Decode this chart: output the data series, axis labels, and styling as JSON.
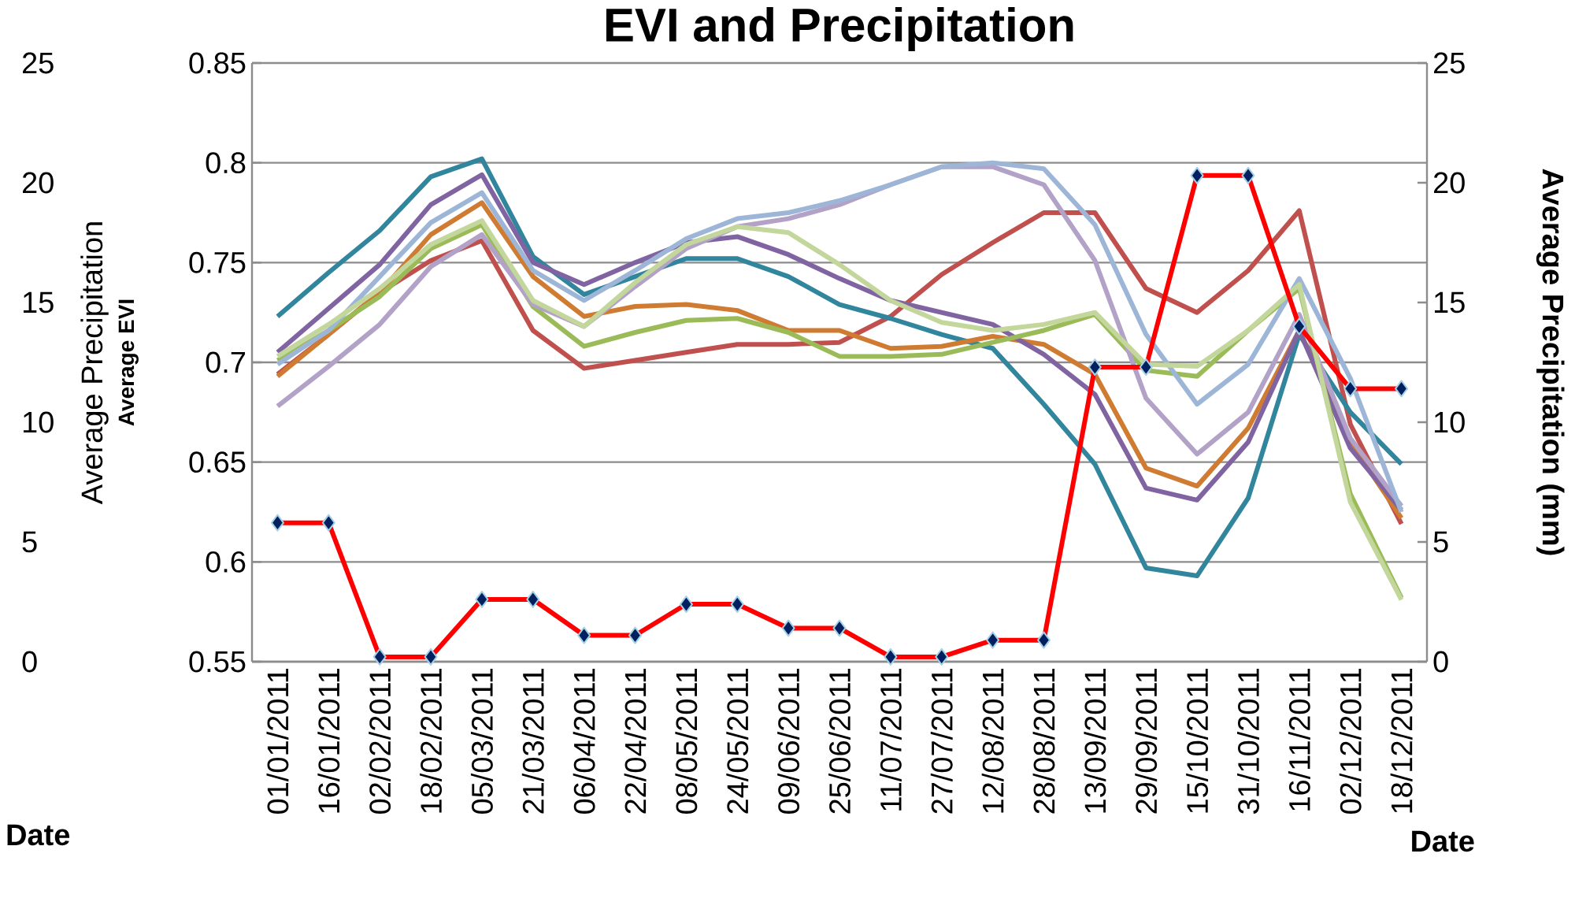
{
  "chart_data": {
    "type": "line",
    "title": "EVI and Precipitation",
    "xlabel": "Date",
    "ylabel": "Average EVI",
    "y2label": "Average Precipitation (mm)",
    "y3label": "Average Precipitation",
    "annotations": [
      "Date"
    ],
    "categories": [
      "01/01/2011",
      "16/01/2011",
      "02/02/2011",
      "18/02/2011",
      "05/03/2011",
      "21/03/2011",
      "06/04/2011",
      "22/04/2011",
      "08/05/2011",
      "24/05/2011",
      "09/06/2011",
      "25/06/2011",
      "11/07/2011",
      "27/07/2011",
      "12/08/2011",
      "28/08/2011",
      "13/09/2011",
      "29/09/2011",
      "15/10/2011",
      "31/10/2011",
      "16/11/2011",
      "02/12/2011",
      "18/12/2011"
    ],
    "ylim": [
      0.55,
      0.85
    ],
    "yticks": [
      0.55,
      0.6,
      0.65,
      0.7,
      0.75,
      0.8,
      0.85
    ],
    "y2lim": [
      0,
      25
    ],
    "y2ticks": [
      0,
      5,
      10,
      15,
      20,
      25
    ],
    "y3lim": [
      0,
      25
    ],
    "y3ticks": [
      0,
      5,
      10,
      15,
      20,
      25
    ],
    "grid": "y",
    "series": [
      {
        "color": "#c0504d",
        "values": [
          0.694,
          0.714,
          0.735,
          0.751,
          0.761,
          0.716,
          0.697,
          0.701,
          0.705,
          0.709,
          0.709,
          0.71,
          0.723,
          0.744,
          0.76,
          0.775,
          0.775,
          0.737,
          0.725,
          0.746,
          0.776,
          0.669,
          0.619
        ]
      },
      {
        "color": "#31859c",
        "values": [
          0.723,
          0.745,
          0.766,
          0.793,
          0.802,
          0.753,
          0.734,
          0.743,
          0.752,
          0.752,
          0.743,
          0.729,
          0.722,
          0.714,
          0.707,
          0.679,
          0.649,
          0.597,
          0.593,
          0.632,
          0.714,
          0.675,
          0.649
        ]
      },
      {
        "color": "#d07b32",
        "values": [
          0.693,
          0.714,
          0.735,
          0.764,
          0.78,
          0.743,
          0.723,
          0.728,
          0.729,
          0.726,
          0.716,
          0.716,
          0.707,
          0.708,
          0.713,
          0.709,
          0.694,
          0.647,
          0.638,
          0.667,
          0.716,
          0.66,
          0.622
        ]
      },
      {
        "color": "#8064a2",
        "values": [
          0.705,
          0.727,
          0.749,
          0.779,
          0.794,
          0.75,
          0.739,
          0.75,
          0.76,
          0.763,
          0.754,
          0.742,
          0.731,
          0.725,
          0.719,
          0.704,
          0.684,
          0.637,
          0.631,
          0.66,
          0.716,
          0.657,
          0.626
        ]
      },
      {
        "color": "#9bbb59",
        "values": [
          0.701,
          0.716,
          0.733,
          0.757,
          0.769,
          0.728,
          0.708,
          0.715,
          0.721,
          0.722,
          0.715,
          0.703,
          0.703,
          0.704,
          0.71,
          0.716,
          0.724,
          0.696,
          0.693,
          0.716,
          0.737,
          0.634,
          0.582
        ]
      },
      {
        "color": "#b3a2c7",
        "values": [
          0.678,
          0.698,
          0.719,
          0.748,
          0.764,
          0.729,
          0.718,
          0.738,
          0.757,
          0.768,
          0.772,
          0.779,
          0.789,
          0.798,
          0.798,
          0.789,
          0.751,
          0.682,
          0.654,
          0.675,
          0.724,
          0.662,
          0.628
        ]
      },
      {
        "color": "#9db6d8",
        "values": [
          0.699,
          0.716,
          0.743,
          0.77,
          0.785,
          0.746,
          0.731,
          0.746,
          0.762,
          0.772,
          0.775,
          0.781,
          0.789,
          0.798,
          0.8,
          0.797,
          0.769,
          0.714,
          0.679,
          0.699,
          0.742,
          0.692,
          0.625
        ]
      },
      {
        "color": "#c3d69b",
        "values": [
          0.703,
          0.719,
          0.737,
          0.759,
          0.771,
          0.731,
          0.718,
          0.74,
          0.759,
          0.768,
          0.765,
          0.749,
          0.731,
          0.72,
          0.716,
          0.719,
          0.725,
          0.699,
          0.698,
          0.716,
          0.739,
          0.63,
          0.581
        ]
      },
      {
        "color": "#ff0000",
        "axis": "y2",
        "marker": "diamond",
        "values": [
          5.8,
          5.8,
          0.2,
          0.2,
          2.6,
          2.6,
          1.1,
          1.1,
          2.4,
          2.4,
          1.4,
          1.4,
          0.2,
          0.2,
          0.9,
          0.9,
          12.3,
          12.3,
          20.3,
          20.3,
          14.0,
          11.4,
          11.4
        ]
      }
    ]
  }
}
